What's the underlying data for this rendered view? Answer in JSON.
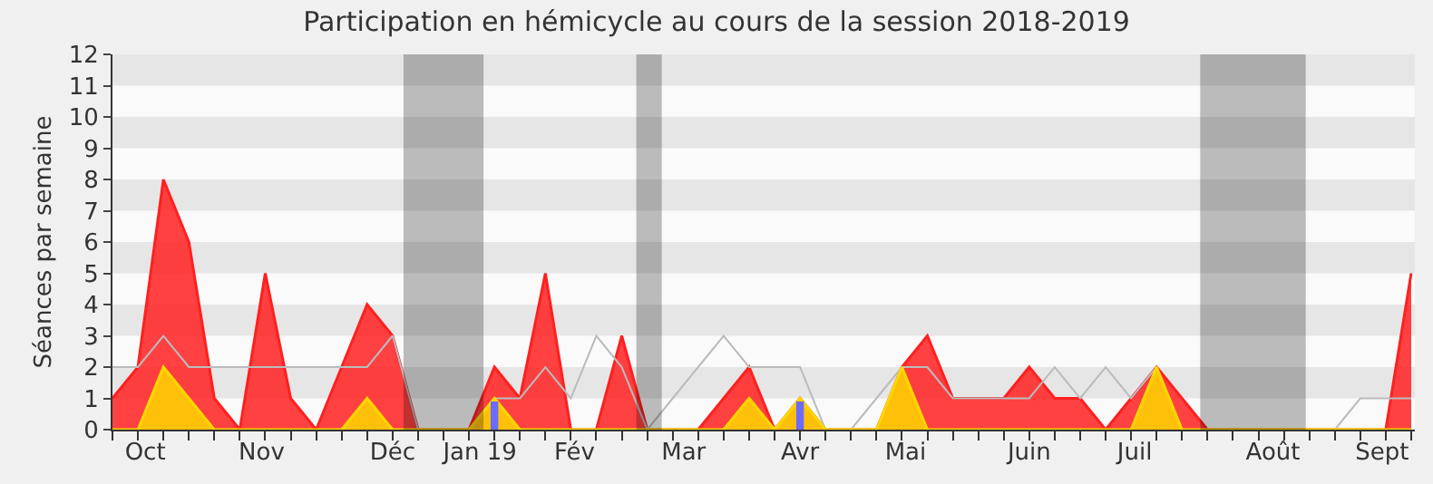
{
  "chart_data": {
    "type": "area",
    "title": "Participation en hémicycle au cours de la session 2018-2019",
    "ylabel": "Séances par semaine",
    "x": [
      "2018-10-01",
      "2018-10-08",
      "2018-10-15",
      "2018-10-22",
      "2018-10-29",
      "2018-11-05",
      "2018-11-12",
      "2018-11-19",
      "2018-11-26",
      "2018-12-03",
      "2018-12-10",
      "2018-12-17",
      "2018-12-24",
      "2018-12-31",
      "2019-01-07",
      "2019-01-14",
      "2019-01-21",
      "2019-01-28",
      "2019-02-04",
      "2019-02-11",
      "2019-02-18",
      "2019-02-25",
      "2019-03-04",
      "2019-03-11",
      "2019-03-18",
      "2019-03-25",
      "2019-04-01",
      "2019-04-08",
      "2019-04-15",
      "2019-04-22",
      "2019-04-29",
      "2019-05-06",
      "2019-05-13",
      "2019-05-20",
      "2019-05-27",
      "2019-06-03",
      "2019-06-10",
      "2019-06-17",
      "2019-06-24",
      "2019-07-01",
      "2019-07-08",
      "2019-07-15",
      "2019-07-22",
      "2019-07-29",
      "2019-08-05",
      "2019-08-12",
      "2019-08-19",
      "2019-08-26",
      "2019-09-02",
      "2019-09-09",
      "2019-09-16",
      "2019-09-23"
    ],
    "series": [
      {
        "color": "#ff2020",
        "values": [
          1,
          2,
          8,
          6,
          1,
          0,
          5,
          1,
          0,
          2,
          4,
          3,
          0,
          0,
          0,
          2,
          1,
          5,
          0,
          0,
          3,
          0,
          0,
          0,
          1,
          2,
          0,
          1,
          0,
          0,
          0,
          2,
          3,
          1,
          1,
          1,
          2,
          1,
          1,
          0,
          1,
          2,
          1,
          0,
          0,
          0,
          0,
          0,
          0,
          0,
          0,
          5
        ]
      },
      {
        "type": "line",
        "color": "#bbbbbb",
        "values": [
          2,
          2,
          3,
          2,
          2,
          2,
          2,
          2,
          2,
          2,
          2,
          3,
          0,
          0,
          0,
          1,
          1,
          2,
          1,
          3,
          2,
          0,
          1,
          2,
          3,
          2,
          2,
          2,
          0,
          0,
          1,
          2,
          2,
          1,
          1,
          1,
          1,
          2,
          1,
          2,
          1,
          2,
          0,
          0,
          0,
          0,
          0,
          0,
          0,
          1,
          1,
          1
        ]
      },
      {
        "color": "#ffd700",
        "values": [
          0,
          0,
          2,
          1,
          0,
          0,
          0,
          0,
          0,
          0,
          1,
          0,
          0,
          0,
          0,
          1,
          0,
          0,
          0,
          0,
          0,
          0,
          0,
          0,
          0,
          1,
          0,
          1,
          0,
          0,
          0,
          2,
          0,
          0,
          0,
          0,
          0,
          0,
          0,
          0,
          0,
          2,
          0,
          0,
          0,
          0,
          0,
          0,
          0,
          0,
          0,
          0
        ]
      },
      {
        "type": "bar",
        "color": "#6b6bff",
        "values": [
          null,
          null,
          null,
          null,
          null,
          null,
          null,
          null,
          null,
          null,
          null,
          null,
          null,
          null,
          null,
          0.9,
          null,
          null,
          null,
          null,
          null,
          null,
          null,
          null,
          null,
          null,
          null,
          0.9,
          null,
          null,
          null,
          null,
          null,
          null,
          null,
          null,
          null,
          null,
          null,
          null,
          null,
          null,
          null,
          null,
          null,
          null,
          null,
          null,
          null,
          null,
          null,
          null
        ]
      }
    ],
    "xlim": [
      "2018-10-01",
      "2019-09-24"
    ],
    "xticks": [
      {
        "value": "2018-10-10",
        "label": "Oct"
      },
      {
        "value": "2018-11-11",
        "label": "Nov"
      },
      {
        "value": "2018-12-17",
        "label": "Déc"
      },
      {
        "value": "2019-01-10",
        "label": "Jan 19"
      },
      {
        "value": "2019-02-05",
        "label": "Fév"
      },
      {
        "value": "2019-03-07",
        "label": "Mar"
      },
      {
        "value": "2019-04-08",
        "label": "Avr"
      },
      {
        "value": "2019-05-07",
        "label": "Mai"
      },
      {
        "value": "2019-06-10",
        "label": "Juin"
      },
      {
        "value": "2019-07-09",
        "label": "Juil"
      },
      {
        "value": "2019-08-16",
        "label": "Août"
      },
      {
        "value": "2019-09-15",
        "label": "Sept"
      }
    ],
    "ylim": [
      0,
      12
    ],
    "yticks": [
      0,
      1,
      2,
      3,
      4,
      5,
      6,
      7,
      8,
      9,
      10,
      11,
      12
    ],
    "bands": [
      {
        "axis": "x",
        "from": "2018-12-20",
        "to": "2019-01-11",
        "color": "#000000"
      },
      {
        "axis": "x",
        "from": "2019-02-22",
        "to": "2019-03-01",
        "color": "#000000"
      },
      {
        "axis": "x",
        "from": "2019-07-27",
        "to": "2019-08-25",
        "color": "#000000"
      },
      {
        "axis": "y",
        "from": 1,
        "to": 2,
        "color": "#e6e6e6"
      },
      {
        "axis": "y",
        "from": 3,
        "to": 4,
        "color": "#e6e6e6"
      },
      {
        "axis": "y",
        "from": 5,
        "to": 6,
        "color": "#e6e6e6"
      },
      {
        "axis": "y",
        "from": 7,
        "to": 8,
        "color": "#e6e6e6"
      },
      {
        "axis": "y",
        "from": 9,
        "to": 10,
        "color": "#e6e6e6"
      },
      {
        "axis": "y",
        "from": 11,
        "to": 12,
        "color": "#e6e6e6"
      }
    ]
  }
}
